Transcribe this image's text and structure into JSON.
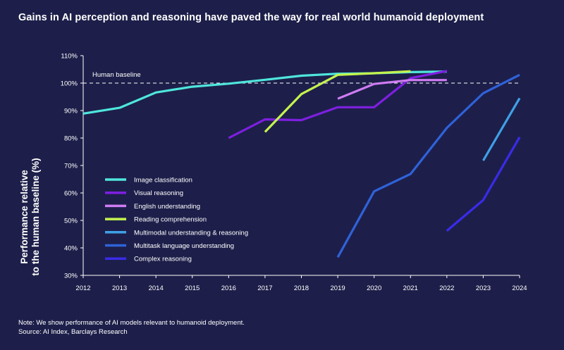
{
  "title": "Gains in AI perception and reasoning have paved the way for real world humanoid deployment",
  "note": "Note: We show performance of AI models relevant to humanoid deployment.",
  "source": "Source: AI Index, Barclays Research",
  "chart_data": {
    "type": "line",
    "title": "Gains in AI perception and reasoning have paved the way for real world humanoid deployment",
    "xlabel": "",
    "ylabel": [
      "Performance relative",
      "to the human baseline (%)"
    ],
    "x_ticks": [
      2012,
      2013,
      2014,
      2015,
      2016,
      2017,
      2018,
      2019,
      2020,
      2021,
      2022,
      2023,
      2024
    ],
    "y_ticks": [
      30,
      40,
      50,
      60,
      70,
      80,
      90,
      100,
      110
    ],
    "y_tick_labels": [
      "30%",
      "40%",
      "50%",
      "60%",
      "70%",
      "80%",
      "90%",
      "100%",
      "110%"
    ],
    "xlim": [
      2012,
      2024
    ],
    "ylim": [
      30,
      110
    ],
    "grid": false,
    "legend_position": "bottom-left",
    "reference_line": {
      "label": "Human baseline",
      "value": 100
    },
    "series": [
      {
        "name": "Image classification",
        "color": "#4fe6dc",
        "points": [
          [
            2012,
            88.9
          ],
          [
            2013,
            91.0
          ],
          [
            2014,
            96.6
          ],
          [
            2015,
            98.7
          ],
          [
            2016,
            99.8
          ],
          [
            2017,
            101.2
          ],
          [
            2018,
            102.7
          ],
          [
            2019,
            103.4
          ],
          [
            2020,
            103.6
          ],
          [
            2021,
            104.0
          ],
          [
            2022,
            104.2
          ]
        ]
      },
      {
        "name": "Visual reasoning",
        "color": "#7e1fe0",
        "points": [
          [
            2016,
            80.0
          ],
          [
            2017,
            86.8
          ],
          [
            2018,
            86.5
          ],
          [
            2019,
            91.2
          ],
          [
            2020,
            91.2
          ],
          [
            2021,
            101.8
          ],
          [
            2022,
            104.4
          ]
        ]
      },
      {
        "name": "English understanding",
        "color": "#cf7cf2",
        "points": [
          [
            2019,
            94.3
          ],
          [
            2020,
            99.7
          ],
          [
            2021,
            101.1
          ],
          [
            2022,
            101.1
          ]
        ]
      },
      {
        "name": "Reading comprehension",
        "color": "#c4f34d",
        "points": [
          [
            2017,
            82.2
          ],
          [
            2018,
            96.0
          ],
          [
            2019,
            103.0
          ],
          [
            2020,
            103.6
          ],
          [
            2021,
            104.3
          ]
        ]
      },
      {
        "name": "Multimodal understanding & reasoning",
        "color": "#3fa0e6",
        "points": [
          [
            2023,
            71.8
          ],
          [
            2024,
            94.5
          ]
        ]
      },
      {
        "name": "Multitask language understanding",
        "color": "#2f62d9",
        "points": [
          [
            2019,
            36.6
          ],
          [
            2020,
            60.6
          ],
          [
            2021,
            66.9
          ],
          [
            2022,
            83.7
          ],
          [
            2023,
            96.3
          ],
          [
            2024,
            103.0
          ]
        ]
      },
      {
        "name": "Complex reasoning",
        "color": "#3a2be8",
        "points": [
          [
            2022,
            46.2
          ],
          [
            2023,
            57.4
          ],
          [
            2024,
            80.3
          ]
        ]
      }
    ]
  }
}
